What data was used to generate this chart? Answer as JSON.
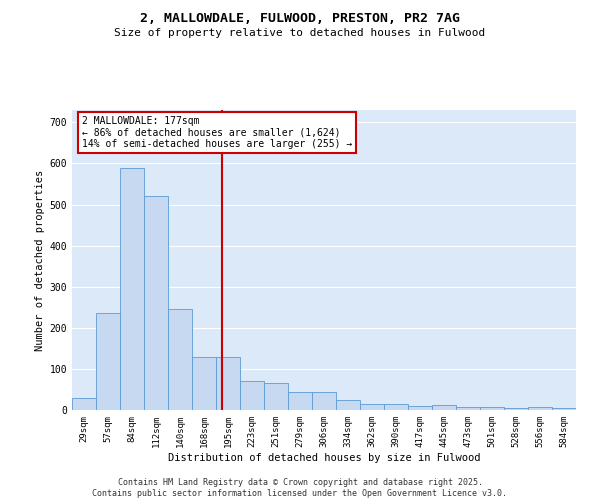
{
  "title1": "2, MALLOWDALE, FULWOOD, PRESTON, PR2 7AG",
  "title2": "Size of property relative to detached houses in Fulwood",
  "xlabel": "Distribution of detached houses by size in Fulwood",
  "ylabel": "Number of detached properties",
  "categories": [
    "29sqm",
    "57sqm",
    "84sqm",
    "112sqm",
    "140sqm",
    "168sqm",
    "195sqm",
    "223sqm",
    "251sqm",
    "279sqm",
    "306sqm",
    "334sqm",
    "362sqm",
    "390sqm",
    "417sqm",
    "445sqm",
    "473sqm",
    "501sqm",
    "528sqm",
    "556sqm",
    "584sqm"
  ],
  "values": [
    30,
    235,
    590,
    520,
    245,
    130,
    130,
    70,
    65,
    45,
    45,
    25,
    15,
    15,
    10,
    12,
    7,
    7,
    5,
    7,
    5
  ],
  "bar_color": "#c6d9f0",
  "bar_edge_color": "#5b9bd5",
  "vline_x_index": 5.75,
  "annotation_text_line1": "2 MALLOWDALE: 177sqm",
  "annotation_text_line2": "← 86% of detached houses are smaller (1,624)",
  "annotation_text_line3": "14% of semi-detached houses are larger (255) →",
  "annotation_box_color": "#ffffff",
  "annotation_box_edge": "#cc0000",
  "vline_color": "#cc0000",
  "background_color": "#dce9f8",
  "grid_color": "#ffffff",
  "ylim": [
    0,
    730
  ],
  "yticks": [
    0,
    100,
    200,
    300,
    400,
    500,
    600,
    700
  ],
  "footnote1": "Contains HM Land Registry data © Crown copyright and database right 2025.",
  "footnote2": "Contains public sector information licensed under the Open Government Licence v3.0."
}
